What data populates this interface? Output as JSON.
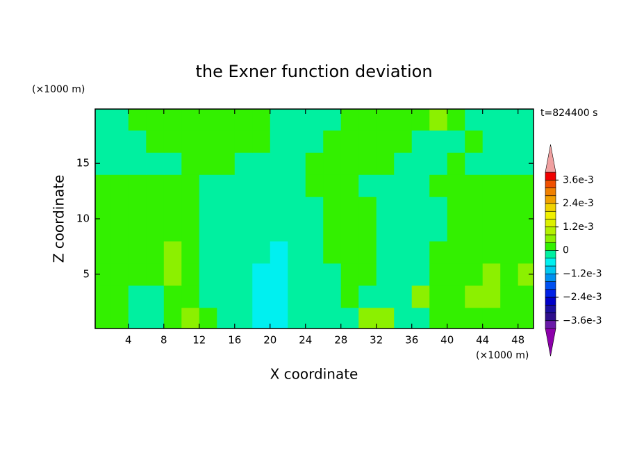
{
  "chart_data": {
    "type": "contour",
    "title": "the Exner function deviation",
    "xlabel": "X coordinate",
    "ylabel": "Z coordinate",
    "x_unit": "(×1000 m)",
    "y_unit": "(×1000 m)",
    "annotation": "t=824400 s",
    "xlim": [
      0.25,
      49.75
    ],
    "ylim": [
      0.1,
      19.9
    ],
    "xticks": [
      4,
      8,
      12,
      16,
      20,
      24,
      28,
      32,
      36,
      40,
      44,
      48
    ],
    "yticks": [
      5,
      10,
      15
    ],
    "x": [
      1,
      3,
      5,
      7,
      9,
      11,
      13,
      15,
      17,
      19,
      21,
      23,
      25,
      27,
      29,
      31,
      33,
      35,
      37,
      39,
      41,
      43,
      45,
      47,
      49
    ],
    "y": [
      1,
      3,
      5,
      7,
      9,
      11,
      13,
      15,
      17,
      19
    ],
    "z": [
      [
        0.0002,
        0.0002,
        -0.0002,
        -0.0002,
        0.0002,
        0.0006,
        0.0002,
        -0.0002,
        -0.0002,
        -0.0006,
        -0.0006,
        -0.0002,
        -0.0002,
        -0.0002,
        -0.0002,
        0.0006,
        0.0006,
        -0.0002,
        -0.0002,
        0.0002,
        0.0002,
        0.0002,
        0.0002,
        0.0002,
        0.0002
      ],
      [
        0.0002,
        0.0002,
        -0.0002,
        -0.0002,
        0.0002,
        0.0002,
        -0.0002,
        -0.0002,
        -0.0002,
        -0.0006,
        -0.0006,
        -0.0002,
        -0.0002,
        -0.0002,
        0.0002,
        -0.0002,
        -0.0002,
        -0.0002,
        0.0006,
        0.0002,
        0.0002,
        0.0006,
        0.0006,
        0.0002,
        0.0002
      ],
      [
        0.0002,
        0.0002,
        0.0002,
        0.0002,
        0.0006,
        0.0002,
        -0.0002,
        -0.0002,
        -0.0002,
        -0.0006,
        -0.0006,
        -0.0002,
        -0.0002,
        -0.0002,
        0.0002,
        0.0002,
        -0.0002,
        -0.0002,
        -0.0002,
        0.0002,
        0.0002,
        0.0002,
        0.0006,
        0.0002,
        0.0006
      ],
      [
        0.0002,
        0.0002,
        0.0002,
        0.0002,
        0.0006,
        0.0002,
        -0.0002,
        -0.0002,
        -0.0002,
        -0.0002,
        -0.0006,
        -0.0002,
        -0.0002,
        0.0002,
        0.0002,
        0.0002,
        -0.0002,
        -0.0002,
        -0.0002,
        0.0002,
        0.0002,
        0.0002,
        0.0002,
        0.0002,
        0.0002
      ],
      [
        0.0002,
        0.0002,
        0.0002,
        0.0002,
        0.0002,
        0.0002,
        -0.0002,
        -0.0002,
        -0.0002,
        -0.0002,
        -0.0002,
        -0.0002,
        -0.0002,
        0.0002,
        0.0002,
        0.0002,
        -0.0002,
        -0.0002,
        -0.0002,
        -0.0002,
        0.0002,
        0.0002,
        0.0002,
        0.0002,
        0.0002
      ],
      [
        0.0002,
        0.0002,
        0.0002,
        0.0002,
        0.0002,
        0.0002,
        -0.0002,
        -0.0002,
        -0.0002,
        -0.0002,
        -0.0002,
        -0.0002,
        -0.0002,
        0.0002,
        0.0002,
        0.0002,
        -0.0002,
        -0.0002,
        -0.0002,
        -0.0002,
        0.0002,
        0.0002,
        0.0002,
        0.0002,
        0.0002
      ],
      [
        0.0002,
        0.0002,
        0.0002,
        0.0002,
        0.0002,
        0.0002,
        -0.0002,
        -0.0002,
        -0.0002,
        -0.0002,
        -0.0002,
        -0.0002,
        0.0002,
        0.0002,
        0.0002,
        -0.0002,
        -0.0002,
        -0.0002,
        -0.0002,
        0.0002,
        0.0002,
        0.0002,
        0.0002,
        0.0002,
        0.0002
      ],
      [
        -0.0002,
        -0.0002,
        -0.0002,
        -0.0002,
        -0.0002,
        0.0002,
        0.0002,
        0.0002,
        -0.0002,
        -0.0002,
        -0.0002,
        -0.0002,
        0.0002,
        0.0002,
        0.0002,
        0.0002,
        0.0002,
        -0.0002,
        -0.0002,
        -0.0002,
        0.0002,
        -0.0002,
        -0.0002,
        -0.0002,
        -0.0002
      ],
      [
        -0.0002,
        -0.0002,
        -0.0002,
        0.0002,
        0.0002,
        0.0002,
        0.0002,
        0.0002,
        0.0002,
        0.0002,
        -0.0002,
        -0.0002,
        -0.0002,
        0.0002,
        0.0002,
        0.0002,
        0.0002,
        0.0002,
        -0.0002,
        -0.0002,
        -0.0002,
        0.0002,
        -0.0002,
        -0.0002,
        -0.0002
      ],
      [
        -0.0002,
        -0.0002,
        0.0002,
        0.0002,
        0.0002,
        0.0002,
        0.0002,
        0.0002,
        0.0002,
        0.0002,
        -0.0002,
        -0.0002,
        -0.0002,
        -0.0002,
        0.0002,
        0.0002,
        0.0002,
        0.0002,
        0.0002,
        0.0006,
        0.0002,
        -0.0002,
        -0.0002,
        -0.0002,
        -0.0002
      ]
    ],
    "levels": [
      -0.004,
      -0.0036,
      -0.0032,
      -0.0028,
      -0.0024,
      -0.002,
      -0.0016,
      -0.0012,
      -0.0008,
      -0.0004,
      0,
      0.0004,
      0.0008,
      0.0012,
      0.0016,
      0.002,
      0.0024,
      0.0028,
      0.0032,
      0.0036,
      0.004
    ],
    "colors": [
      "#6a1aa8",
      "#2e0f8c",
      "#1a0fa0",
      "#0000c8",
      "#0020e6",
      "#0050f0",
      "#0090f0",
      "#00c8f0",
      "#00f0f0",
      "#00f0a0",
      "#33f000",
      "#8cf000",
      "#b4f000",
      "#dcf000",
      "#f0f000",
      "#f0d200",
      "#f0a000",
      "#f08000",
      "#f05000",
      "#f00000"
    ],
    "under_color": "#8c00aa",
    "over_color": "#f0a0a0",
    "colorbar_ticks": [
      {
        "value": 0.0036,
        "label": "3.6e-3"
      },
      {
        "value": 0.0024,
        "label": "2.4e-3"
      },
      {
        "value": 0.0012,
        "label": "1.2e-3"
      },
      0,
      {
        "value": -0.0012,
        "label": "−1.2e-3"
      },
      {
        "value": -0.0024,
        "label": "−2.4e-3"
      },
      {
        "value": -0.0036,
        "label": "−3.6e-3"
      }
    ]
  }
}
